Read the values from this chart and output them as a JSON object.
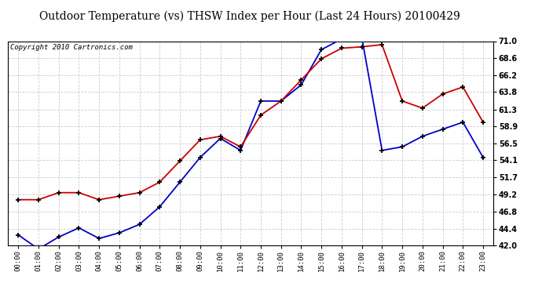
{
  "title": "Outdoor Temperature (vs) THSW Index per Hour (Last 24 Hours) 20100429",
  "copyright": "Copyright 2010 Cartronics.com",
  "hours": [
    "00:00",
    "01:00",
    "02:00",
    "03:00",
    "04:00",
    "05:00",
    "06:00",
    "07:00",
    "08:00",
    "09:00",
    "10:00",
    "11:00",
    "12:00",
    "13:00",
    "14:00",
    "15:00",
    "16:00",
    "17:00",
    "18:00",
    "19:00",
    "20:00",
    "21:00",
    "22:00",
    "23:00"
  ],
  "temp_blue": [
    43.5,
    41.5,
    43.2,
    44.5,
    43.0,
    43.8,
    45.0,
    47.5,
    51.0,
    54.5,
    57.2,
    55.5,
    62.5,
    62.5,
    64.8,
    69.8,
    71.3,
    71.5,
    55.5,
    56.0,
    57.5,
    58.5,
    59.5,
    54.5
  ],
  "thsw_red": [
    48.5,
    48.5,
    49.5,
    49.5,
    48.5,
    49.0,
    49.5,
    51.0,
    54.0,
    57.0,
    57.5,
    56.0,
    60.5,
    62.5,
    65.5,
    68.5,
    70.0,
    70.2,
    70.5,
    62.5,
    61.5,
    63.5,
    64.5,
    59.5
  ],
  "ylim": [
    42.0,
    71.0
  ],
  "yticks": [
    42.0,
    44.4,
    46.8,
    49.2,
    51.7,
    54.1,
    56.5,
    58.9,
    61.3,
    63.8,
    66.2,
    68.6,
    71.0
  ],
  "blue_color": "#0000CC",
  "red_color": "#CC0000",
  "bg_color": "#FFFFFF",
  "plot_bg_color": "#FFFFFF",
  "grid_color": "#CCCCCC",
  "title_fontsize": 10,
  "copyright_fontsize": 6.5
}
